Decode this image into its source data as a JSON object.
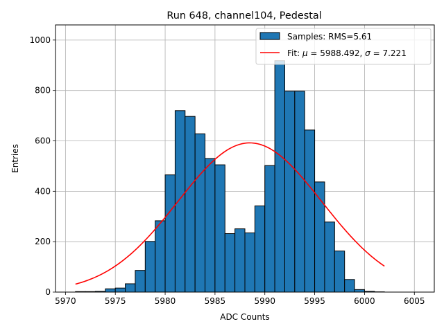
{
  "chart_data": {
    "type": "bar",
    "title": "Run 648, channel104, Pedestal",
    "xlabel": "ADC Counts",
    "ylabel": "Entries",
    "xlim": [
      5969,
      6007
    ],
    "ylim": [
      0,
      1060
    ],
    "xticks": [
      5970,
      5975,
      5980,
      5985,
      5990,
      5995,
      6000,
      6005
    ],
    "yticks": [
      0,
      200,
      400,
      600,
      800,
      1000
    ],
    "grid": true,
    "legend_position": "top-right",
    "bar_color": "#1f77b4",
    "fit_color": "#ff0000",
    "histogram": {
      "name": "Samples: RMS=5.61",
      "bin_edges": [
        5971,
        5972,
        5973,
        5974,
        5975,
        5976,
        5977,
        5978,
        5979,
        5980,
        5981,
        5982,
        5983,
        5984,
        5985,
        5986,
        5987,
        5988,
        5989,
        5990,
        5991,
        5992,
        5993,
        5994,
        5995,
        5996,
        5997,
        5998,
        5999,
        6000,
        6001,
        6002
      ],
      "counts": [
        2,
        2,
        3,
        13,
        16,
        33,
        86,
        201,
        283,
        465,
        720,
        697,
        628,
        530,
        505,
        232,
        251,
        235,
        342,
        502,
        918,
        797,
        797,
        643,
        437,
        278,
        163,
        50,
        10,
        3,
        1
      ]
    },
    "fit": {
      "name_prefix": "Fit: ",
      "mu_symbol": "μ",
      "sigma_symbol": "σ",
      "mu": 5988.492,
      "sigma": 7.221,
      "amplitude": 592,
      "x_range": [
        5971,
        6002
      ],
      "mu_text": "5988.492",
      "sigma_text": "7.221"
    }
  }
}
